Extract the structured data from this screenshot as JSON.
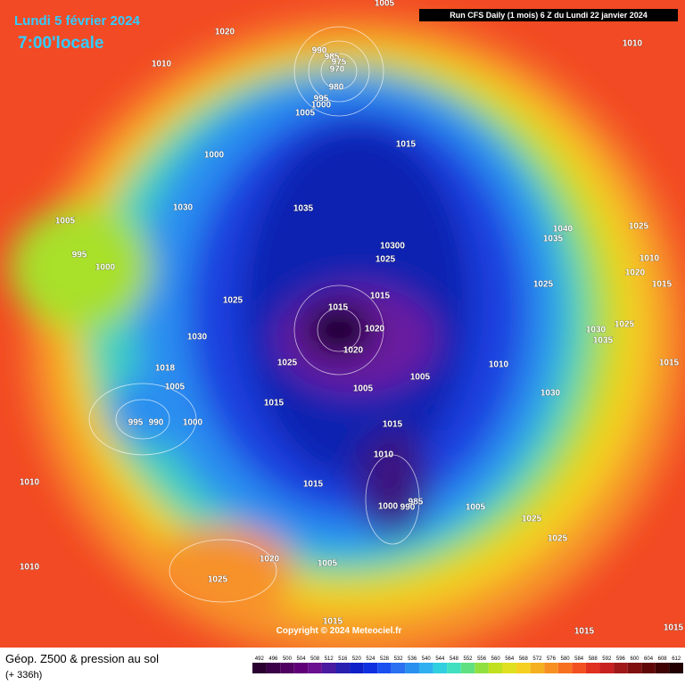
{
  "header": {
    "date": "Lundi 5 février 2024",
    "time": "7:00'locale",
    "run": "Run CFS Daily (1 mois) 6 Z du Lundi 22 janvier 2024"
  },
  "map": {
    "pressure_labels": [
      "1005",
      "1020",
      "1010",
      "1010",
      "990",
      "985",
      "975",
      "970",
      "980",
      "995",
      "1000",
      "1005",
      "1015",
      "1000",
      "1030",
      "1035",
      "1005",
      "995",
      "1000",
      "10300",
      "1025",
      "1040",
      "1035",
      "1025",
      "1010",
      "1020",
      "1015",
      "1025",
      "1025",
      "1015",
      "1015",
      "1020",
      "1020",
      "1030",
      "1030",
      "1035",
      "1025",
      "1025",
      "1010",
      "1015",
      "1018",
      "1005",
      "1005",
      "1005",
      "1030",
      "1015",
      "995",
      "990",
      "1000",
      "1015",
      "1010",
      "1010",
      "1015",
      "985",
      "1000",
      "990",
      "1005",
      "1025",
      "1025",
      "1020",
      "1005",
      "1010",
      "1025",
      "1015",
      "1015",
      "1015"
    ]
  },
  "footer": {
    "copyright": "Copyright © 2024 Meteociel.fr",
    "title": "Géop. Z500 & pression au sol",
    "lead": "(+ 336h)"
  },
  "legend": {
    "values": [
      492,
      496,
      500,
      504,
      508,
      512,
      516,
      520,
      524,
      528,
      532,
      536,
      540,
      544,
      548,
      552,
      556,
      560,
      564,
      568,
      572,
      576,
      580,
      584,
      588,
      592,
      596,
      600,
      604,
      608,
      612
    ]
  }
}
